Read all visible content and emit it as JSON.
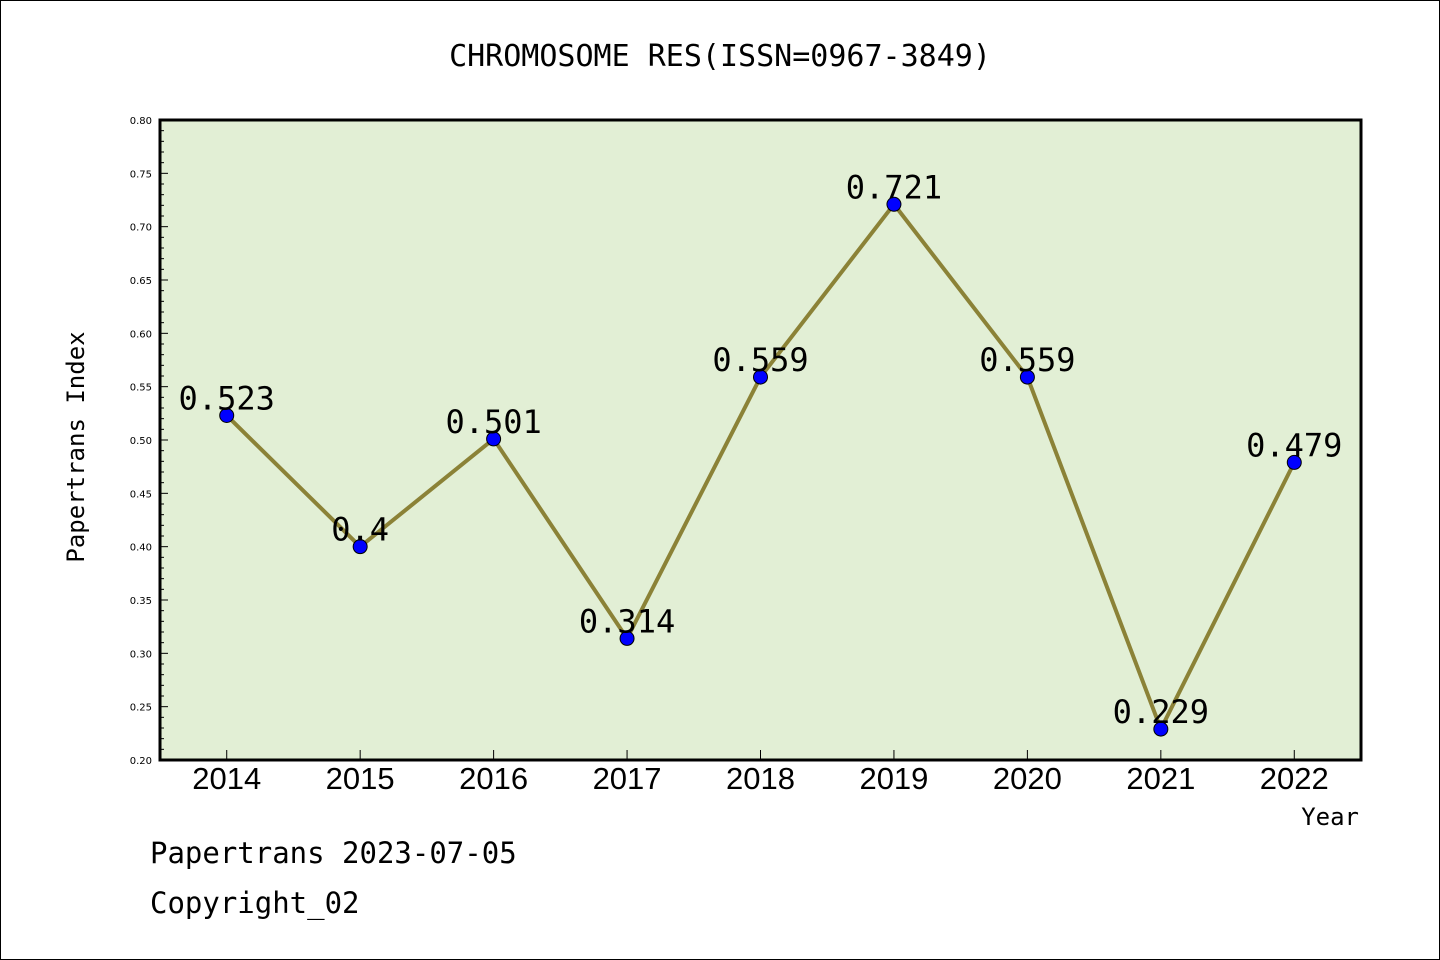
{
  "chart_data": {
    "type": "line",
    "title": "CHROMOSOME RES(ISSN=0967-3849)",
    "xlabel": "Year",
    "ylabel": "Papertrans Index",
    "categories": [
      "2014",
      "2015",
      "2016",
      "2017",
      "2018",
      "2019",
      "2020",
      "2021",
      "2022"
    ],
    "values": [
      0.523,
      0.4,
      0.501,
      0.314,
      0.559,
      0.721,
      0.559,
      0.229,
      0.479
    ],
    "data_labels": [
      "0.523",
      "0.4",
      "0.501",
      "0.314",
      "0.559",
      "0.721",
      "0.559",
      "0.229",
      "0.479"
    ],
    "ylim": [
      0.2,
      0.8
    ],
    "yticks": [
      "0.20",
      "0.25",
      "0.30",
      "0.35",
      "0.40",
      "0.45",
      "0.50",
      "0.55",
      "0.60",
      "0.65",
      "0.70",
      "0.75",
      "0.80"
    ],
    "grid": false,
    "colors": {
      "plot_background": "#e2efd5",
      "line": "#8b8237",
      "marker": "#0000ff"
    }
  },
  "footer": {
    "line1": "Papertrans 2023-07-05",
    "line2": "Copyright_02"
  }
}
